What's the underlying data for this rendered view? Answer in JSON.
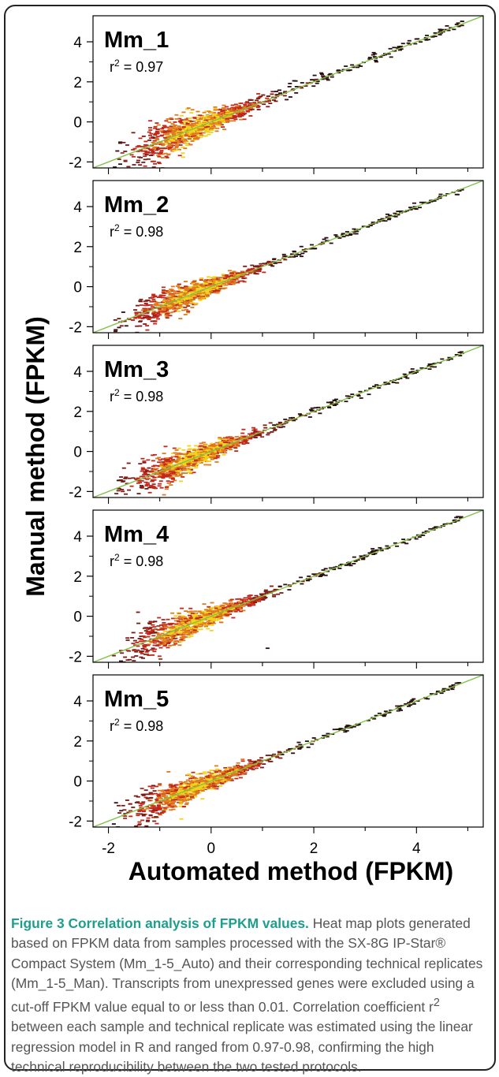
{
  "chart_data": {
    "type": "heatmap",
    "ylabel": "Manual method (FPKM)",
    "xlabel": "Automated method (FPKM)",
    "xlim": [
      -2.3,
      5.3
    ],
    "ylim": [
      -2.3,
      5.3
    ],
    "x_ticks": [
      -2,
      0,
      2,
      4
    ],
    "y_ticks": [
      -2,
      0,
      2,
      4
    ],
    "x_tick_labels": [
      "-2",
      "0",
      "2",
      "4"
    ],
    "y_tick_labels": [
      "-2",
      "0",
      "2",
      "4"
    ],
    "reference_line": {
      "slope": 1,
      "intercept": 0,
      "color": "#7ec242"
    },
    "colors": {
      "density_low": "#2b0e0e",
      "density_mid": "#c0281c",
      "density_high": "#f2d21b"
    },
    "panels": [
      {
        "label": "Mm_1",
        "r2_prefix": "r",
        "r2_sup": "2",
        "r2_value": " = 0.97",
        "r2": 0.97
      },
      {
        "label": "Mm_2",
        "r2_prefix": "r",
        "r2_sup": "2",
        "r2_value": " = 0.98",
        "r2": 0.98
      },
      {
        "label": "Mm_3",
        "r2_prefix": "r",
        "r2_sup": "2",
        "r2_value": " = 0.98",
        "r2": 0.98
      },
      {
        "label": "Mm_4",
        "r2_prefix": "r",
        "r2_sup": "2",
        "r2_value": " = 0.98",
        "r2": 0.98
      },
      {
        "label": "Mm_5",
        "r2_prefix": "r",
        "r2_sup": "2",
        "r2_value": " = 0.98",
        "r2": 0.98
      }
    ]
  },
  "caption": {
    "title": "Figure 3 Correlation analysis of FPKM values.",
    "body_1": " Heat map plots generated based on FPKM data from samples processed with the SX-8G IP-Star® Compact System (Mm_1-5_Auto) and their corresponding technical replicates (Mm_1-5_Man). Transcripts from unexpressed genes were excluded using a cut-off FPKM value equal to or less than 0.01. Correlation coefficient r",
    "body_sup": "2",
    "body_2": " between each sample and technical replicate was estimated using the linear regression model in R and ranged from 0.97-0.98, confirming the high technical reproducibility between the two tested protocols."
  }
}
